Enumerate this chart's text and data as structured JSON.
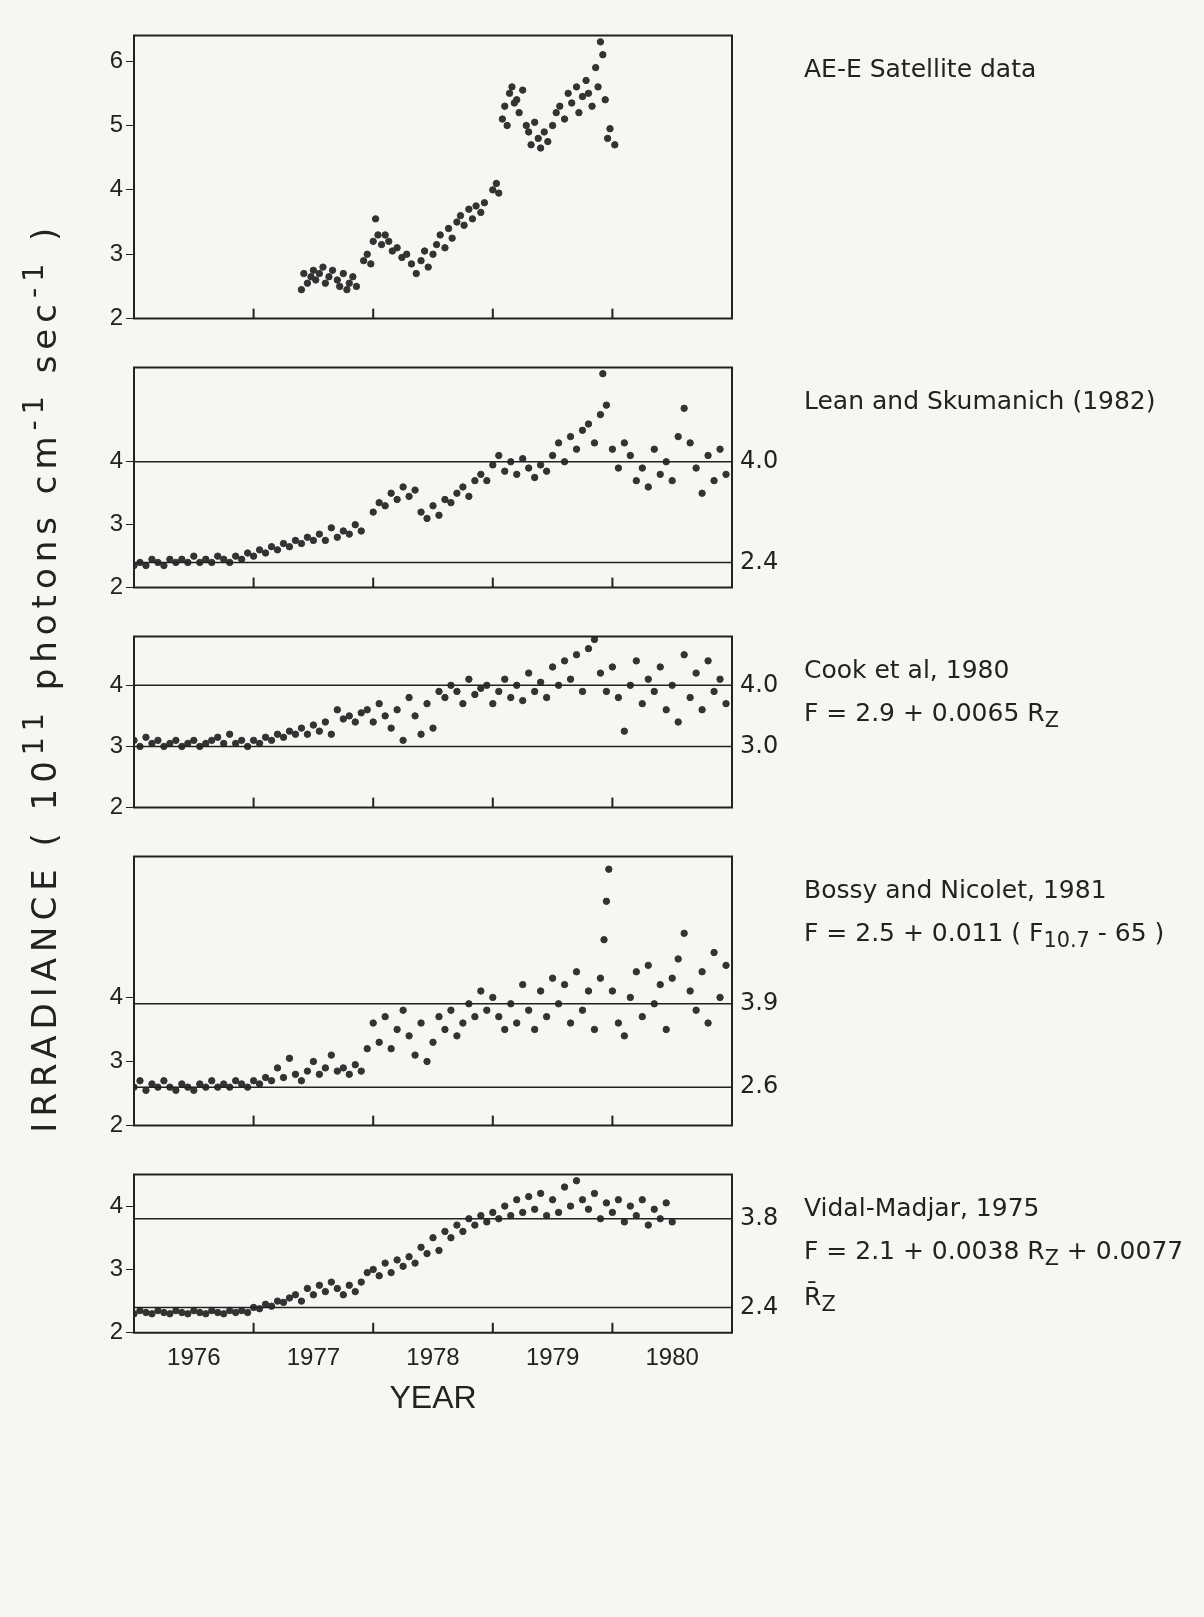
{
  "chart_data": [
    {
      "type": "scatter",
      "ylabel": "IRRADIANCE  ( 10$^{11}$ photons  cm$^{-1}$  sec$^{-1}$ )",
      "color": "#333333",
      "marker": "circle",
      "xlim": [
        1976,
        1981
      ],
      "xticks": [
        {
          "value": 1977,
          "label": null
        },
        {
          "value": 1978,
          "label": null
        },
        {
          "value": 1979,
          "label": null
        },
        {
          "value": 1980,
          "label": null
        }
      ],
      "ylim": [
        2,
        6.4
      ],
      "yticks": [
        2,
        3,
        4,
        5,
        6
      ],
      "tick_labels": "y",
      "annotations": [
        "AE-E Satellite data"
      ],
      "x": [
        1977.4,
        1977.42,
        1977.45,
        1977.48,
        1977.5,
        1977.52,
        1977.55,
        1977.58,
        1977.6,
        1977.63,
        1977.66,
        1977.7,
        1977.72,
        1977.75,
        1977.78,
        1977.8,
        1977.83,
        1977.86,
        1977.92,
        1977.95,
        1977.98,
        1978.0,
        1978.02,
        1978.04,
        1978.07,
        1978.1,
        1978.13,
        1978.16,
        1978.2,
        1978.24,
        1978.28,
        1978.32,
        1978.36,
        1978.4,
        1978.43,
        1978.46,
        1978.5,
        1978.53,
        1978.56,
        1978.6,
        1978.63,
        1978.66,
        1978.7,
        1978.73,
        1978.76,
        1978.8,
        1978.83,
        1978.86,
        1978.9,
        1978.93,
        1979.0,
        1979.03,
        1979.05,
        1979.08,
        1979.1,
        1979.12,
        1979.14,
        1979.16,
        1979.18,
        1979.2,
        1979.22,
        1979.25,
        1979.28,
        1979.3,
        1979.32,
        1979.35,
        1979.38,
        1979.4,
        1979.43,
        1979.46,
        1979.5,
        1979.53,
        1979.56,
        1979.6,
        1979.63,
        1979.66,
        1979.7,
        1979.72,
        1979.75,
        1979.78,
        1979.8,
        1979.83,
        1979.86,
        1979.88,
        1979.9,
        1979.92,
        1979.94,
        1979.96,
        1979.98,
        1980.02
      ],
      "values": [
        2.45,
        2.7,
        2.55,
        2.65,
        2.75,
        2.6,
        2.7,
        2.8,
        2.55,
        2.65,
        2.75,
        2.6,
        2.5,
        2.7,
        2.45,
        2.55,
        2.65,
        2.5,
        2.9,
        3.0,
        2.85,
        3.2,
        3.55,
        3.3,
        3.15,
        3.3,
        3.2,
        3.05,
        3.1,
        2.95,
        3.0,
        2.85,
        2.7,
        2.9,
        3.05,
        2.8,
        3.0,
        3.15,
        3.3,
        3.1,
        3.4,
        3.25,
        3.5,
        3.6,
        3.45,
        3.7,
        3.55,
        3.75,
        3.65,
        3.8,
        4.0,
        4.1,
        3.95,
        5.1,
        5.3,
        5.0,
        5.5,
        5.6,
        5.35,
        5.4,
        5.2,
        5.55,
        5.0,
        4.9,
        4.7,
        5.05,
        4.8,
        4.65,
        4.9,
        4.75,
        5.0,
        5.2,
        5.3,
        5.1,
        5.5,
        5.35,
        5.6,
        5.2,
        5.45,
        5.7,
        5.5,
        5.3,
        5.9,
        5.6,
        6.3,
        6.1,
        5.4,
        4.8,
        4.95,
        4.7
      ]
    },
    {
      "type": "scatter",
      "color": "#333333",
      "marker": "circle",
      "xlim": [
        1976,
        1981
      ],
      "xticks": [
        {
          "value": 1977,
          "label": null
        },
        {
          "value": 1978,
          "label": null
        },
        {
          "value": 1979,
          "label": null
        },
        {
          "value": 1980,
          "label": null
        }
      ],
      "ylim": [
        2,
        5.5
      ],
      "yticks": [
        2,
        3,
        4
      ],
      "tick_labels": "y",
      "annotations": [
        "Lean and Skumanich (1982)"
      ],
      "ref_lines": [
        {
          "axis": "y",
          "value": 4.0,
          "label": "4.0"
        },
        {
          "axis": "y",
          "value": 2.4,
          "label": "2.4"
        }
      ],
      "x": [
        1976.0,
        1976.05,
        1976.1,
        1976.15,
        1976.2,
        1976.25,
        1976.3,
        1976.35,
        1976.4,
        1976.45,
        1976.5,
        1976.55,
        1976.6,
        1976.65,
        1976.7,
        1976.75,
        1976.8,
        1976.85,
        1976.9,
        1976.95,
        1977.0,
        1977.05,
        1977.1,
        1977.15,
        1977.2,
        1977.25,
        1977.3,
        1977.35,
        1977.4,
        1977.45,
        1977.5,
        1977.55,
        1977.6,
        1977.65,
        1977.7,
        1977.75,
        1977.8,
        1977.85,
        1977.9,
        1978.0,
        1978.05,
        1978.1,
        1978.15,
        1978.2,
        1978.25,
        1978.3,
        1978.35,
        1978.4,
        1978.45,
        1978.5,
        1978.55,
        1978.6,
        1978.65,
        1978.7,
        1978.75,
        1978.8,
        1978.85,
        1978.9,
        1978.95,
        1979.0,
        1979.05,
        1979.1,
        1979.15,
        1979.2,
        1979.25,
        1979.3,
        1979.35,
        1979.4,
        1979.45,
        1979.5,
        1979.55,
        1979.6,
        1979.65,
        1979.7,
        1979.75,
        1979.8,
        1979.85,
        1979.9,
        1979.92,
        1979.95,
        1980.0,
        1980.05,
        1980.1,
        1980.15,
        1980.2,
        1980.25,
        1980.3,
        1980.35,
        1980.4,
        1980.45,
        1980.5,
        1980.55,
        1980.6,
        1980.65,
        1980.7,
        1980.75,
        1980.8,
        1980.85,
        1980.9,
        1980.95
      ],
      "values": [
        2.35,
        2.4,
        2.35,
        2.45,
        2.4,
        2.35,
        2.45,
        2.4,
        2.45,
        2.4,
        2.5,
        2.4,
        2.45,
        2.4,
        2.5,
        2.45,
        2.4,
        2.5,
        2.45,
        2.55,
        2.5,
        2.6,
        2.55,
        2.65,
        2.6,
        2.7,
        2.65,
        2.75,
        2.7,
        2.8,
        2.75,
        2.85,
        2.75,
        2.95,
        2.8,
        2.9,
        2.85,
        3.0,
        2.9,
        3.2,
        3.35,
        3.3,
        3.5,
        3.4,
        3.6,
        3.45,
        3.55,
        3.2,
        3.1,
        3.3,
        3.15,
        3.4,
        3.35,
        3.5,
        3.6,
        3.45,
        3.7,
        3.8,
        3.7,
        3.95,
        4.1,
        3.85,
        4.0,
        3.8,
        4.05,
        3.9,
        3.75,
        3.95,
        3.85,
        4.1,
        4.3,
        4.0,
        4.4,
        4.2,
        4.5,
        4.6,
        4.3,
        4.75,
        5.4,
        4.9,
        4.2,
        3.9,
        4.3,
        4.1,
        3.7,
        3.9,
        3.6,
        4.2,
        3.8,
        4.0,
        3.7,
        4.4,
        4.85,
        4.3,
        3.9,
        3.5,
        4.1,
        3.7,
        4.2,
        3.8
      ]
    },
    {
      "type": "scatter",
      "color": "#333333",
      "marker": "circle",
      "xlim": [
        1976,
        1981
      ],
      "xticks": [
        {
          "value": 1977,
          "label": null
        },
        {
          "value": 1978,
          "label": null
        },
        {
          "value": 1979,
          "label": null
        },
        {
          "value": 1980,
          "label": null
        }
      ],
      "ylim": [
        2,
        4.8
      ],
      "yticks": [
        2,
        3,
        4
      ],
      "tick_labels": "y",
      "annotations": [
        "Cook et al, 1980",
        "F = 2.9 + 0.0065 R$_{Z}$"
      ],
      "ref_lines": [
        {
          "axis": "y",
          "value": 4.0,
          "label": "4.0"
        },
        {
          "axis": "y",
          "value": 3.0,
          "label": "3.0"
        }
      ],
      "x": [
        1976.0,
        1976.05,
        1976.1,
        1976.15,
        1976.2,
        1976.25,
        1976.3,
        1976.35,
        1976.4,
        1976.45,
        1976.5,
        1976.55,
        1976.6,
        1976.65,
        1976.7,
        1976.75,
        1976.8,
        1976.85,
        1976.9,
        1976.95,
        1977.0,
        1977.05,
        1977.1,
        1977.15,
        1977.2,
        1977.25,
        1977.3,
        1977.35,
        1977.4,
        1977.45,
        1977.5,
        1977.55,
        1977.6,
        1977.65,
        1977.7,
        1977.75,
        1977.8,
        1977.85,
        1977.9,
        1977.95,
        1978.0,
        1978.05,
        1978.1,
        1978.15,
        1978.2,
        1978.25,
        1978.3,
        1978.35,
        1978.4,
        1978.45,
        1978.5,
        1978.55,
        1978.6,
        1978.65,
        1978.7,
        1978.75,
        1978.8,
        1978.85,
        1978.9,
        1978.95,
        1979.0,
        1979.05,
        1979.1,
        1979.15,
        1979.2,
        1979.25,
        1979.3,
        1979.35,
        1979.4,
        1979.45,
        1979.5,
        1979.55,
        1979.6,
        1979.65,
        1979.7,
        1979.75,
        1979.8,
        1979.85,
        1979.9,
        1979.95,
        1980.0,
        1980.05,
        1980.1,
        1980.15,
        1980.2,
        1980.25,
        1980.3,
        1980.35,
        1980.4,
        1980.45,
        1980.5,
        1980.55,
        1980.6,
        1980.65,
        1980.7,
        1980.75,
        1980.8,
        1980.85,
        1980.9,
        1980.95
      ],
      "values": [
        3.1,
        3.0,
        3.15,
        3.05,
        3.1,
        3.0,
        3.05,
        3.1,
        3.0,
        3.05,
        3.1,
        3.0,
        3.05,
        3.1,
        3.15,
        3.05,
        3.2,
        3.05,
        3.1,
        3.0,
        3.1,
        3.05,
        3.15,
        3.1,
        3.2,
        3.15,
        3.25,
        3.2,
        3.3,
        3.2,
        3.35,
        3.25,
        3.4,
        3.2,
        3.6,
        3.45,
        3.5,
        3.4,
        3.55,
        3.6,
        3.4,
        3.7,
        3.5,
        3.3,
        3.6,
        3.1,
        3.8,
        3.5,
        3.2,
        3.7,
        3.3,
        3.9,
        3.8,
        4.0,
        3.9,
        3.7,
        4.1,
        3.85,
        3.95,
        4.0,
        3.7,
        3.9,
        4.1,
        3.8,
        4.0,
        3.75,
        4.2,
        3.9,
        4.05,
        3.8,
        4.3,
        4.0,
        4.4,
        4.1,
        4.5,
        3.9,
        4.6,
        4.75,
        4.2,
        3.9,
        4.3,
        3.8,
        3.25,
        4.0,
        4.4,
        3.7,
        4.1,
        3.9,
        4.3,
        3.6,
        4.0,
        3.4,
        4.5,
        3.8,
        4.2,
        3.6,
        4.4,
        3.9,
        4.1,
        3.7
      ]
    },
    {
      "type": "scatter",
      "color": "#333333",
      "marker": "circle",
      "xlim": [
        1976,
        1981
      ],
      "xticks": [
        {
          "value": 1977,
          "label": null
        },
        {
          "value": 1978,
          "label": null
        },
        {
          "value": 1979,
          "label": null
        },
        {
          "value": 1980,
          "label": null
        }
      ],
      "ylim": [
        2,
        6.2
      ],
      "yticks": [
        2,
        3,
        4
      ],
      "tick_labels": "y",
      "annotations": [
        "Bossy and Nicolet, 1981",
        "F = 2.5 + 0.011 ( F$_{10.7}$ - 65 )"
      ],
      "ref_lines": [
        {
          "axis": "y",
          "value": 3.9,
          "label": "3.9"
        },
        {
          "axis": "y",
          "value": 2.6,
          "label": "2.6"
        }
      ],
      "x": [
        1976.0,
        1976.05,
        1976.1,
        1976.15,
        1976.2,
        1976.25,
        1976.3,
        1976.35,
        1976.4,
        1976.45,
        1976.5,
        1976.55,
        1976.6,
        1976.65,
        1976.7,
        1976.75,
        1976.8,
        1976.85,
        1976.9,
        1976.95,
        1977.0,
        1977.05,
        1977.1,
        1977.15,
        1977.2,
        1977.25,
        1977.3,
        1977.35,
        1977.4,
        1977.45,
        1977.5,
        1977.55,
        1977.6,
        1977.65,
        1977.7,
        1977.75,
        1977.8,
        1977.85,
        1977.9,
        1977.95,
        1978.0,
        1978.05,
        1978.1,
        1978.15,
        1978.2,
        1978.25,
        1978.3,
        1978.35,
        1978.4,
        1978.45,
        1978.5,
        1978.55,
        1978.6,
        1978.65,
        1978.7,
        1978.75,
        1978.8,
        1978.85,
        1978.9,
        1978.95,
        1979.0,
        1979.05,
        1979.1,
        1979.15,
        1979.2,
        1979.25,
        1979.3,
        1979.35,
        1979.4,
        1979.45,
        1979.5,
        1979.55,
        1979.6,
        1979.65,
        1979.7,
        1979.75,
        1979.8,
        1979.85,
        1979.9,
        1979.93,
        1979.95,
        1979.97,
        1980.0,
        1980.05,
        1980.1,
        1980.15,
        1980.2,
        1980.25,
        1980.3,
        1980.35,
        1980.4,
        1980.45,
        1980.5,
        1980.55,
        1980.6,
        1980.65,
        1980.7,
        1980.75,
        1980.8,
        1980.85,
        1980.9,
        1980.95
      ],
      "values": [
        2.6,
        2.7,
        2.55,
        2.65,
        2.6,
        2.7,
        2.6,
        2.55,
        2.65,
        2.6,
        2.55,
        2.65,
        2.6,
        2.7,
        2.6,
        2.65,
        2.6,
        2.7,
        2.65,
        2.6,
        2.7,
        2.65,
        2.75,
        2.7,
        2.9,
        2.75,
        3.05,
        2.8,
        2.7,
        2.85,
        3.0,
        2.8,
        2.9,
        3.1,
        2.85,
        2.9,
        2.8,
        2.95,
        2.85,
        3.2,
        3.6,
        3.3,
        3.7,
        3.2,
        3.5,
        3.8,
        3.4,
        3.1,
        3.6,
        3.0,
        3.3,
        3.7,
        3.5,
        3.8,
        3.4,
        3.6,
        3.9,
        3.7,
        4.1,
        3.8,
        4.0,
        3.7,
        3.5,
        3.9,
        3.6,
        4.2,
        3.8,
        3.5,
        4.1,
        3.7,
        4.3,
        3.9,
        4.2,
        3.6,
        4.4,
        3.8,
        4.1,
        3.5,
        4.3,
        4.9,
        5.5,
        6.0,
        4.1,
        3.6,
        3.4,
        4.0,
        4.4,
        3.7,
        4.5,
        3.9,
        4.2,
        3.5,
        4.3,
        4.6,
        5.0,
        4.1,
        3.8,
        4.4,
        3.6,
        4.7,
        4.0,
        4.5
      ]
    },
    {
      "type": "scatter",
      "xlabel": "YEAR",
      "color": "#333333",
      "marker": "circle",
      "xlim": [
        1976,
        1981
      ],
      "xticks": [
        {
          "value": 1976.5,
          "label": "1976"
        },
        {
          "value": 1977,
          "label": null
        },
        {
          "value": 1977.5,
          "label": "1977"
        },
        {
          "value": 1978,
          "label": null
        },
        {
          "value": 1978.5,
          "label": "1978"
        },
        {
          "value": 1979,
          "label": null
        },
        {
          "value": 1979.5,
          "label": "1979"
        },
        {
          "value": 1980,
          "label": null
        },
        {
          "value": 1980.5,
          "label": "1980"
        }
      ],
      "ylim": [
        2,
        4.5
      ],
      "yticks": [
        2,
        3,
        4
      ],
      "annotations": [
        "Vidal-Madjar, 1975",
        "F = 2.1 + 0.0038 R$_{Z}$ + 0.0077 R̄$_{Z}$"
      ],
      "ref_lines": [
        {
          "axis": "y",
          "value": 3.8,
          "label": "3.8"
        },
        {
          "axis": "y",
          "value": 2.4,
          "label": "2.4"
        }
      ],
      "x": [
        1976.0,
        1976.05,
        1976.1,
        1976.15,
        1976.2,
        1976.25,
        1976.3,
        1976.35,
        1976.4,
        1976.45,
        1976.5,
        1976.55,
        1976.6,
        1976.65,
        1976.7,
        1976.75,
        1976.8,
        1976.85,
        1976.9,
        1976.95,
        1977.0,
        1977.05,
        1977.1,
        1977.15,
        1977.2,
        1977.25,
        1977.3,
        1977.35,
        1977.4,
        1977.45,
        1977.5,
        1977.55,
        1977.6,
        1977.65,
        1977.7,
        1977.75,
        1977.8,
        1977.85,
        1977.9,
        1977.95,
        1978.0,
        1978.05,
        1978.1,
        1978.15,
        1978.2,
        1978.25,
        1978.3,
        1978.35,
        1978.4,
        1978.45,
        1978.5,
        1978.55,
        1978.6,
        1978.65,
        1978.7,
        1978.75,
        1978.8,
        1978.85,
        1978.9,
        1978.95,
        1979.0,
        1979.05,
        1979.1,
        1979.15,
        1979.2,
        1979.25,
        1979.3,
        1979.35,
        1979.4,
        1979.45,
        1979.5,
        1979.55,
        1979.6,
        1979.65,
        1979.7,
        1979.75,
        1979.8,
        1979.85,
        1979.9,
        1979.95,
        1980.0,
        1980.05,
        1980.1,
        1980.15,
        1980.2,
        1980.25,
        1980.3,
        1980.35,
        1980.4,
        1980.45,
        1980.5
      ],
      "values": [
        2.3,
        2.35,
        2.32,
        2.3,
        2.35,
        2.32,
        2.3,
        2.35,
        2.32,
        2.3,
        2.35,
        2.32,
        2.3,
        2.35,
        2.32,
        2.3,
        2.35,
        2.32,
        2.35,
        2.32,
        2.4,
        2.38,
        2.45,
        2.42,
        2.5,
        2.48,
        2.55,
        2.6,
        2.5,
        2.7,
        2.6,
        2.75,
        2.65,
        2.8,
        2.7,
        2.6,
        2.75,
        2.65,
        2.8,
        2.95,
        3.0,
        2.9,
        3.1,
        2.95,
        3.15,
        3.05,
        3.2,
        3.1,
        3.35,
        3.25,
        3.5,
        3.3,
        3.6,
        3.5,
        3.7,
        3.6,
        3.8,
        3.7,
        3.85,
        3.75,
        3.9,
        3.8,
        4.0,
        3.85,
        4.1,
        3.9,
        4.15,
        3.95,
        4.2,
        3.85,
        4.1,
        3.9,
        4.3,
        4.0,
        4.4,
        4.1,
        3.95,
        4.2,
        3.8,
        4.05,
        3.9,
        4.1,
        3.75,
        4.0,
        3.85,
        4.1,
        3.7,
        3.95,
        3.8,
        4.05,
        3.75
      ]
    }
  ]
}
